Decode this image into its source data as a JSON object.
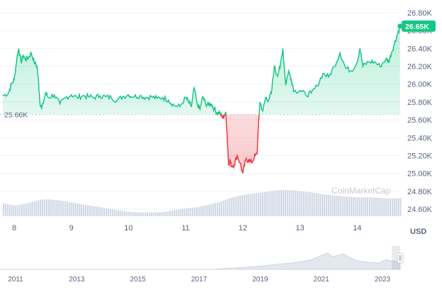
{
  "chart_data": {
    "type": "area",
    "currency_label": "USD",
    "baseline_label": "25.66K",
    "baseline_value": 25.66,
    "last_price_label": "26.65K",
    "last_price_value": 26.65,
    "x_ticks": [
      "8",
      "9",
      "10",
      "11",
      "12",
      "13",
      "14"
    ],
    "y_ticks": [
      "26.80K",
      "26.60K",
      "26.40K",
      "26.20K",
      "26.00K",
      "25.80K",
      "25.60K",
      "25.40K",
      "25.20K",
      "25.00K",
      "24.80K",
      "24.60K"
    ],
    "ylim": [
      24.45,
      26.85
    ],
    "xlim": [
      7.8,
      14.75
    ],
    "watermark": "CoinMarketCap",
    "colors": {
      "up": "#16c784",
      "down": "#ea3943",
      "volume": "#cfd6e4",
      "grid": "#eff2f5"
    },
    "price": {
      "x": [
        7.8,
        7.9,
        7.95,
        8.0,
        8.05,
        8.08,
        8.12,
        8.16,
        8.2,
        8.25,
        8.3,
        8.35,
        8.4,
        8.43,
        8.45,
        8.48,
        8.55,
        8.6,
        8.7,
        8.8,
        8.9,
        9.0,
        9.1,
        9.2,
        9.3,
        9.4,
        9.5,
        9.6,
        9.7,
        9.8,
        9.9,
        10.0,
        10.1,
        10.2,
        10.3,
        10.4,
        10.5,
        10.6,
        10.7,
        10.8,
        10.9,
        11.0,
        11.05,
        11.1,
        11.15,
        11.2,
        11.25,
        11.3,
        11.35,
        11.4,
        11.45,
        11.5,
        11.55,
        11.6,
        11.65,
        11.7,
        11.72,
        11.75,
        11.78,
        11.8,
        11.85,
        11.9,
        11.95,
        12.0,
        12.05,
        12.1,
        12.15,
        12.2,
        12.25,
        12.27,
        12.3,
        12.35,
        12.4,
        12.45,
        12.5,
        12.55,
        12.6,
        12.65,
        12.7,
        12.75,
        12.8,
        12.85,
        12.9,
        13.0,
        13.1,
        13.2,
        13.3,
        13.4,
        13.5,
        13.6,
        13.7,
        13.8,
        13.9,
        14.0,
        14.05,
        14.1,
        14.2,
        14.3,
        14.4,
        14.5,
        14.55,
        14.6,
        14.65,
        14.7,
        14.75
      ],
      "y": [
        25.87,
        25.9,
        26.0,
        26.05,
        26.3,
        26.4,
        26.25,
        26.32,
        26.28,
        26.3,
        26.35,
        26.25,
        26.2,
        26.0,
        25.8,
        25.72,
        25.9,
        25.85,
        25.88,
        25.78,
        25.85,
        25.88,
        25.85,
        25.87,
        25.86,
        25.85,
        25.87,
        25.86,
        25.85,
        25.82,
        25.86,
        25.88,
        25.86,
        25.87,
        25.85,
        25.86,
        25.84,
        25.85,
        25.82,
        25.76,
        25.75,
        25.85,
        25.8,
        25.75,
        25.96,
        25.78,
        25.72,
        25.86,
        25.78,
        25.77,
        25.78,
        25.72,
        25.68,
        25.68,
        25.62,
        25.69,
        25.5,
        25.1,
        25.15,
        25.08,
        25.1,
        25.2,
        25.12,
        25.0,
        25.15,
        25.15,
        25.12,
        25.18,
        25.22,
        25.5,
        25.8,
        25.7,
        25.85,
        25.82,
        25.9,
        26.2,
        26.1,
        26.18,
        26.4,
        26.0,
        26.15,
        26.05,
        25.92,
        25.93,
        25.88,
        25.9,
        25.98,
        26.12,
        26.08,
        26.2,
        26.35,
        26.18,
        26.15,
        26.25,
        26.4,
        26.2,
        26.25,
        26.25,
        26.2,
        26.28,
        26.25,
        26.35,
        26.45,
        26.55,
        26.65
      ]
    },
    "volume": {
      "x": [
        7.8,
        8.0,
        8.2,
        8.4,
        8.5,
        8.6,
        8.8,
        9.0,
        9.2,
        9.5,
        9.7,
        10.0,
        10.2,
        10.4,
        10.6,
        10.8,
        11.0,
        11.2,
        11.4,
        11.6,
        11.8,
        12.0,
        12.2,
        12.4,
        12.6,
        12.8,
        13.0,
        13.2,
        13.4,
        13.6,
        13.8,
        14.0,
        14.2,
        14.4,
        14.6,
        14.75
      ],
      "y": [
        0.42,
        0.35,
        0.42,
        0.52,
        0.55,
        0.55,
        0.52,
        0.45,
        0.38,
        0.3,
        0.22,
        0.14,
        0.12,
        0.12,
        0.14,
        0.2,
        0.26,
        0.3,
        0.38,
        0.48,
        0.62,
        0.7,
        0.75,
        0.8,
        0.85,
        0.86,
        0.82,
        0.78,
        0.72,
        0.68,
        0.64,
        0.62,
        0.62,
        0.6,
        0.58,
        0.6
      ]
    },
    "navigator": {
      "x_ticks": [
        "2011",
        "2013",
        "2015",
        "2017",
        "2019",
        "2021",
        "2023"
      ]
    }
  }
}
